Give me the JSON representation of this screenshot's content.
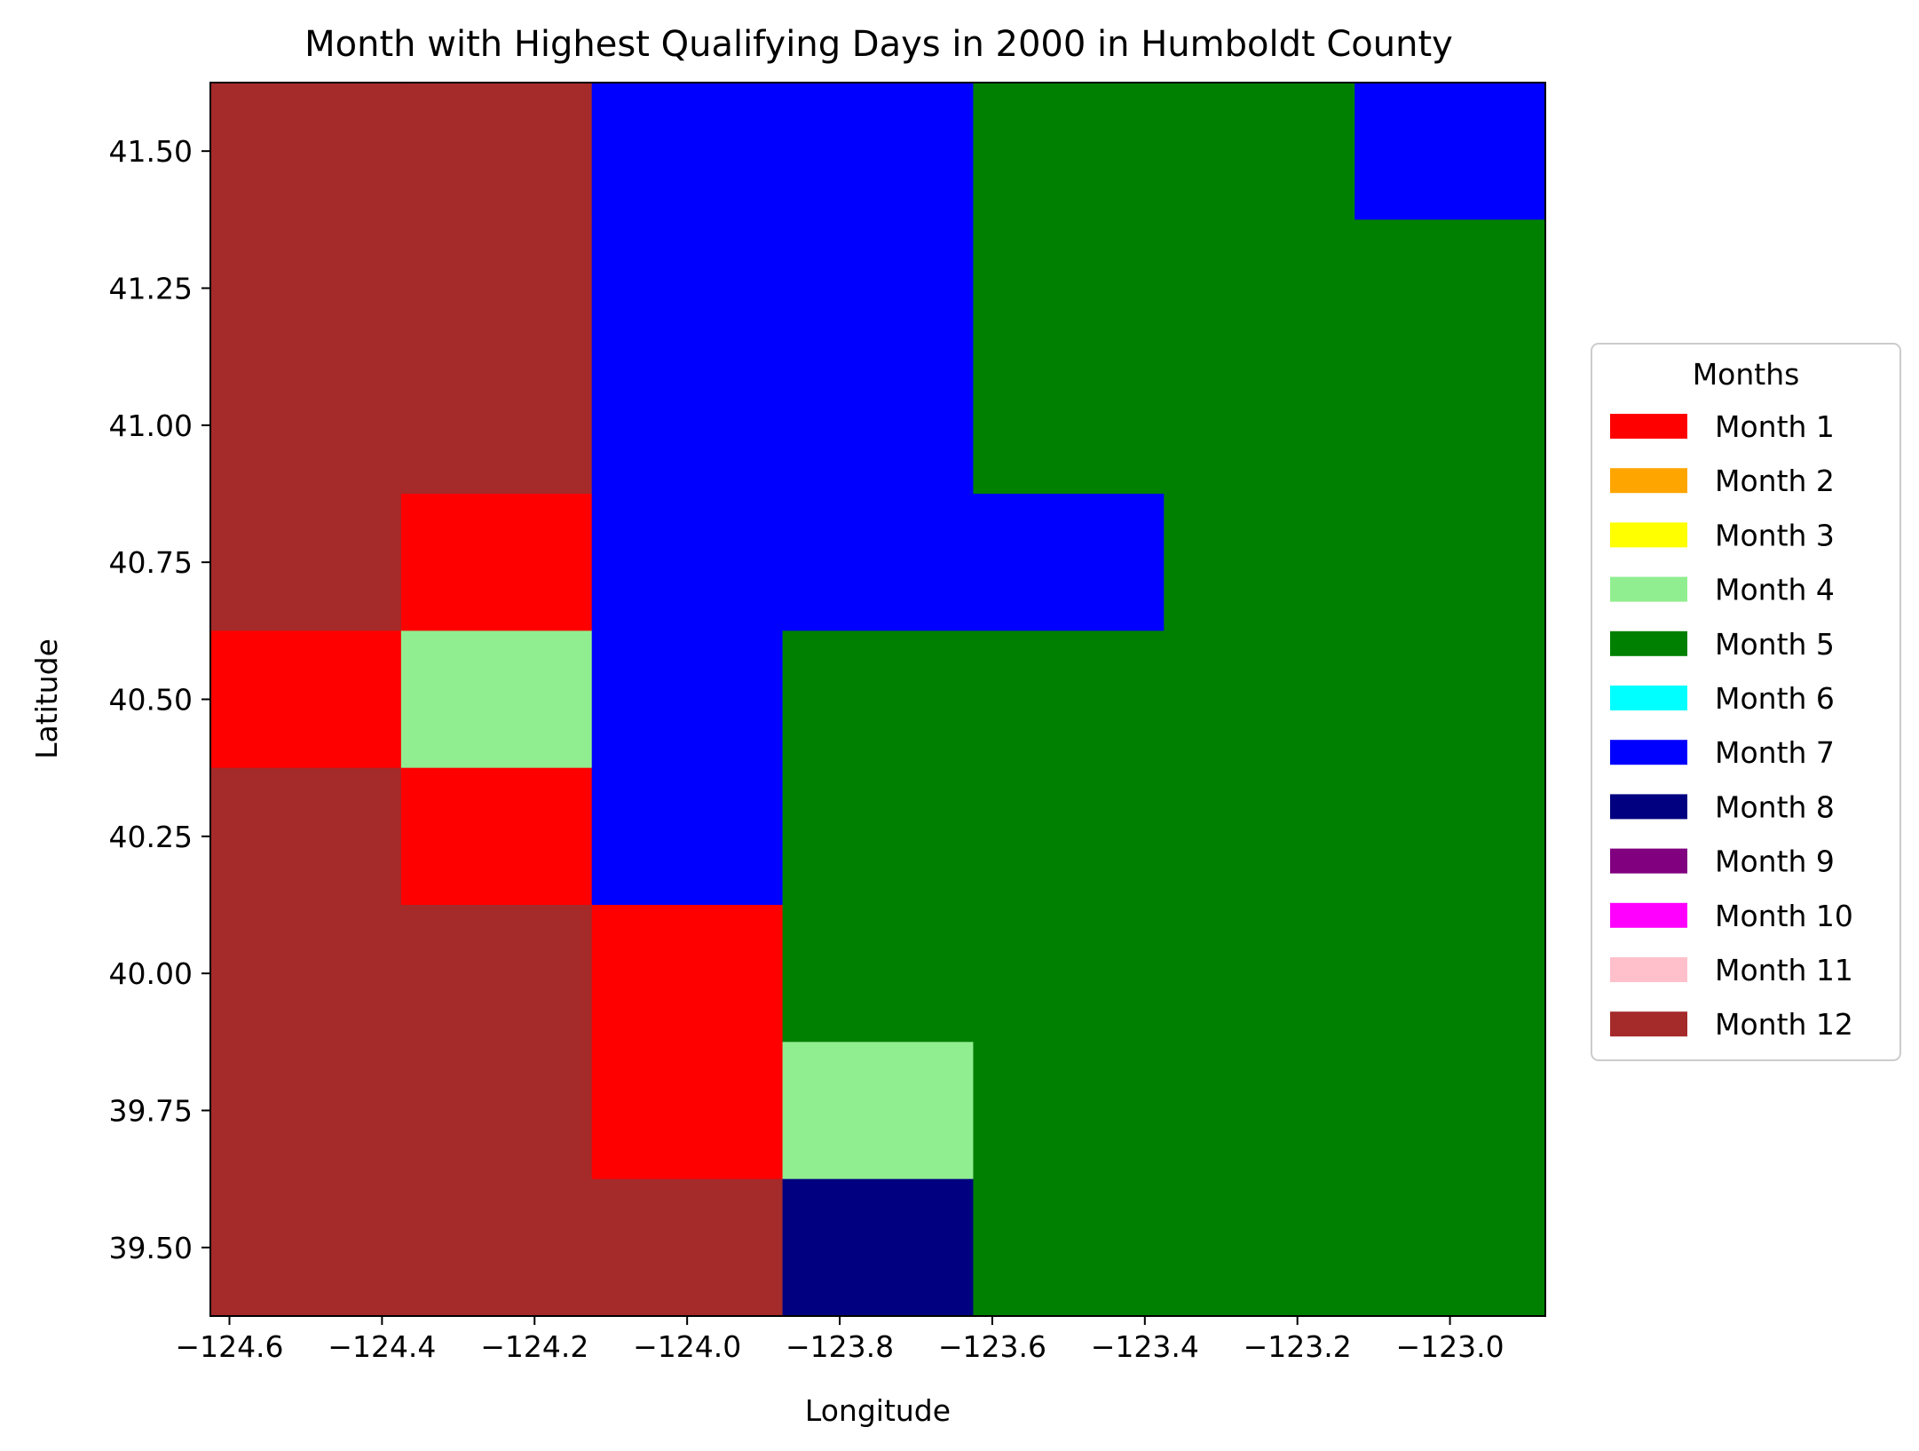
{
  "chart_data": {
    "type": "heatmap",
    "title": "Month with Highest Qualifying Days in 2000 in Humboldt County",
    "xlabel": "Longitude",
    "ylabel": "Latitude",
    "xlim": [
      -124.625,
      -122.875
    ],
    "ylim": [
      39.375,
      41.625
    ],
    "x_ticks": [
      -124.6,
      -124.4,
      -124.2,
      -124.0,
      -123.8,
      -123.6,
      -123.4,
      -123.2,
      -123.0
    ],
    "x_tick_labels": [
      "−124.6",
      "−124.4",
      "−124.2",
      "−124.0",
      "−123.8",
      "−123.6",
      "−123.4",
      "−123.2",
      "−123.0"
    ],
    "y_ticks": [
      39.5,
      39.75,
      40.0,
      40.25,
      40.5,
      40.75,
      41.0,
      41.25,
      41.5
    ],
    "y_tick_labels": [
      "39.50",
      "39.75",
      "40.00",
      "40.25",
      "40.50",
      "40.75",
      "41.00",
      "41.25",
      "41.50"
    ],
    "x_centers": [
      -124.5,
      -124.25,
      -124.0,
      -123.75,
      -123.5,
      -123.25,
      -123.0
    ],
    "y_centers": [
      41.5,
      41.25,
      41.0,
      40.75,
      40.5,
      40.25,
      40.0,
      39.75,
      39.5
    ],
    "cell_width": 0.25,
    "cell_height": 0.25,
    "grid": false,
    "grid_months_rows_top_to_bottom": [
      [
        12,
        12,
        7,
        7,
        5,
        5,
        7
      ],
      [
        12,
        12,
        7,
        7,
        5,
        5,
        5
      ],
      [
        12,
        12,
        7,
        7,
        5,
        5,
        5
      ],
      [
        12,
        1,
        7,
        7,
        7,
        5,
        5
      ],
      [
        1,
        4,
        7,
        5,
        5,
        5,
        5
      ],
      [
        12,
        1,
        7,
        5,
        5,
        5,
        5
      ],
      [
        12,
        12,
        1,
        5,
        5,
        5,
        5
      ],
      [
        12,
        12,
        1,
        4,
        5,
        5,
        5
      ],
      [
        12,
        12,
        12,
        8,
        5,
        5,
        5
      ]
    ],
    "legend": {
      "title": "Months",
      "placement": "right",
      "items": [
        {
          "month": 1,
          "label": "Month 1",
          "color": "#ff0000"
        },
        {
          "month": 2,
          "label": "Month 2",
          "color": "#ffa500"
        },
        {
          "month": 3,
          "label": "Month 3",
          "color": "#ffff00"
        },
        {
          "month": 4,
          "label": "Month 4",
          "color": "#90ee90"
        },
        {
          "month": 5,
          "label": "Month 5",
          "color": "#008000"
        },
        {
          "month": 6,
          "label": "Month 6",
          "color": "#00ffff"
        },
        {
          "month": 7,
          "label": "Month 7",
          "color": "#0000ff"
        },
        {
          "month": 8,
          "label": "Month 8",
          "color": "#000080"
        },
        {
          "month": 9,
          "label": "Month 9",
          "color": "#800080"
        },
        {
          "month": 10,
          "label": "Month 10",
          "color": "#ff00ff"
        },
        {
          "month": 11,
          "label": "Month 11",
          "color": "#ffc0cb"
        },
        {
          "month": 12,
          "label": "Month 12",
          "color": "#a52a2a"
        }
      ]
    }
  }
}
